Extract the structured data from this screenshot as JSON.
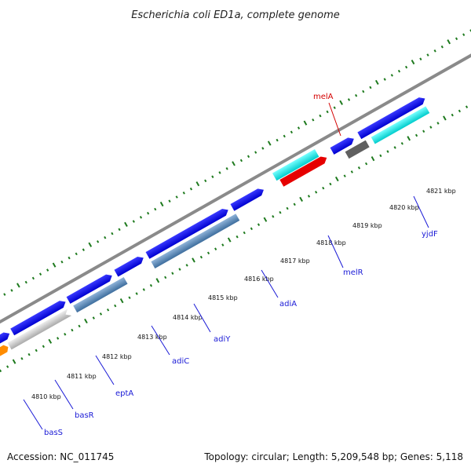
{
  "title": "Escherichia coli ED1a, complete genome",
  "footer": {
    "accession": "Accession: NC_011745",
    "summary": "Topology: circular; Length: 5,209,548 bp; Genes: 5,118"
  },
  "ticks": [
    "4810 kbp",
    "4811 kbp",
    "4812 kbp",
    "4813 kbp",
    "4814 kbp",
    "4815 kbp",
    "4816 kbp",
    "4817 kbp",
    "4818 kbp",
    "4819 kbp",
    "4820 kbp",
    "4821 kbp"
  ],
  "gene_labels": {
    "melA": "melA",
    "melR": "melR",
    "yjdF": "yjdF",
    "adiA": "adiA",
    "adiY": "adiY",
    "adiC": "adiC",
    "eptA": "eptA",
    "basR": "basR",
    "basS": "basS"
  },
  "colors": {
    "backbone": "#8a8a8a",
    "gc_skew_ticks": "#1e7a1e",
    "forward_gene": "#0000e6",
    "reverse_gene": "#4682b4",
    "rna": "#00c8c8",
    "highlight": "#e60000",
    "label_blue": "#1a1ad6",
    "label_red": "#d40000"
  }
}
